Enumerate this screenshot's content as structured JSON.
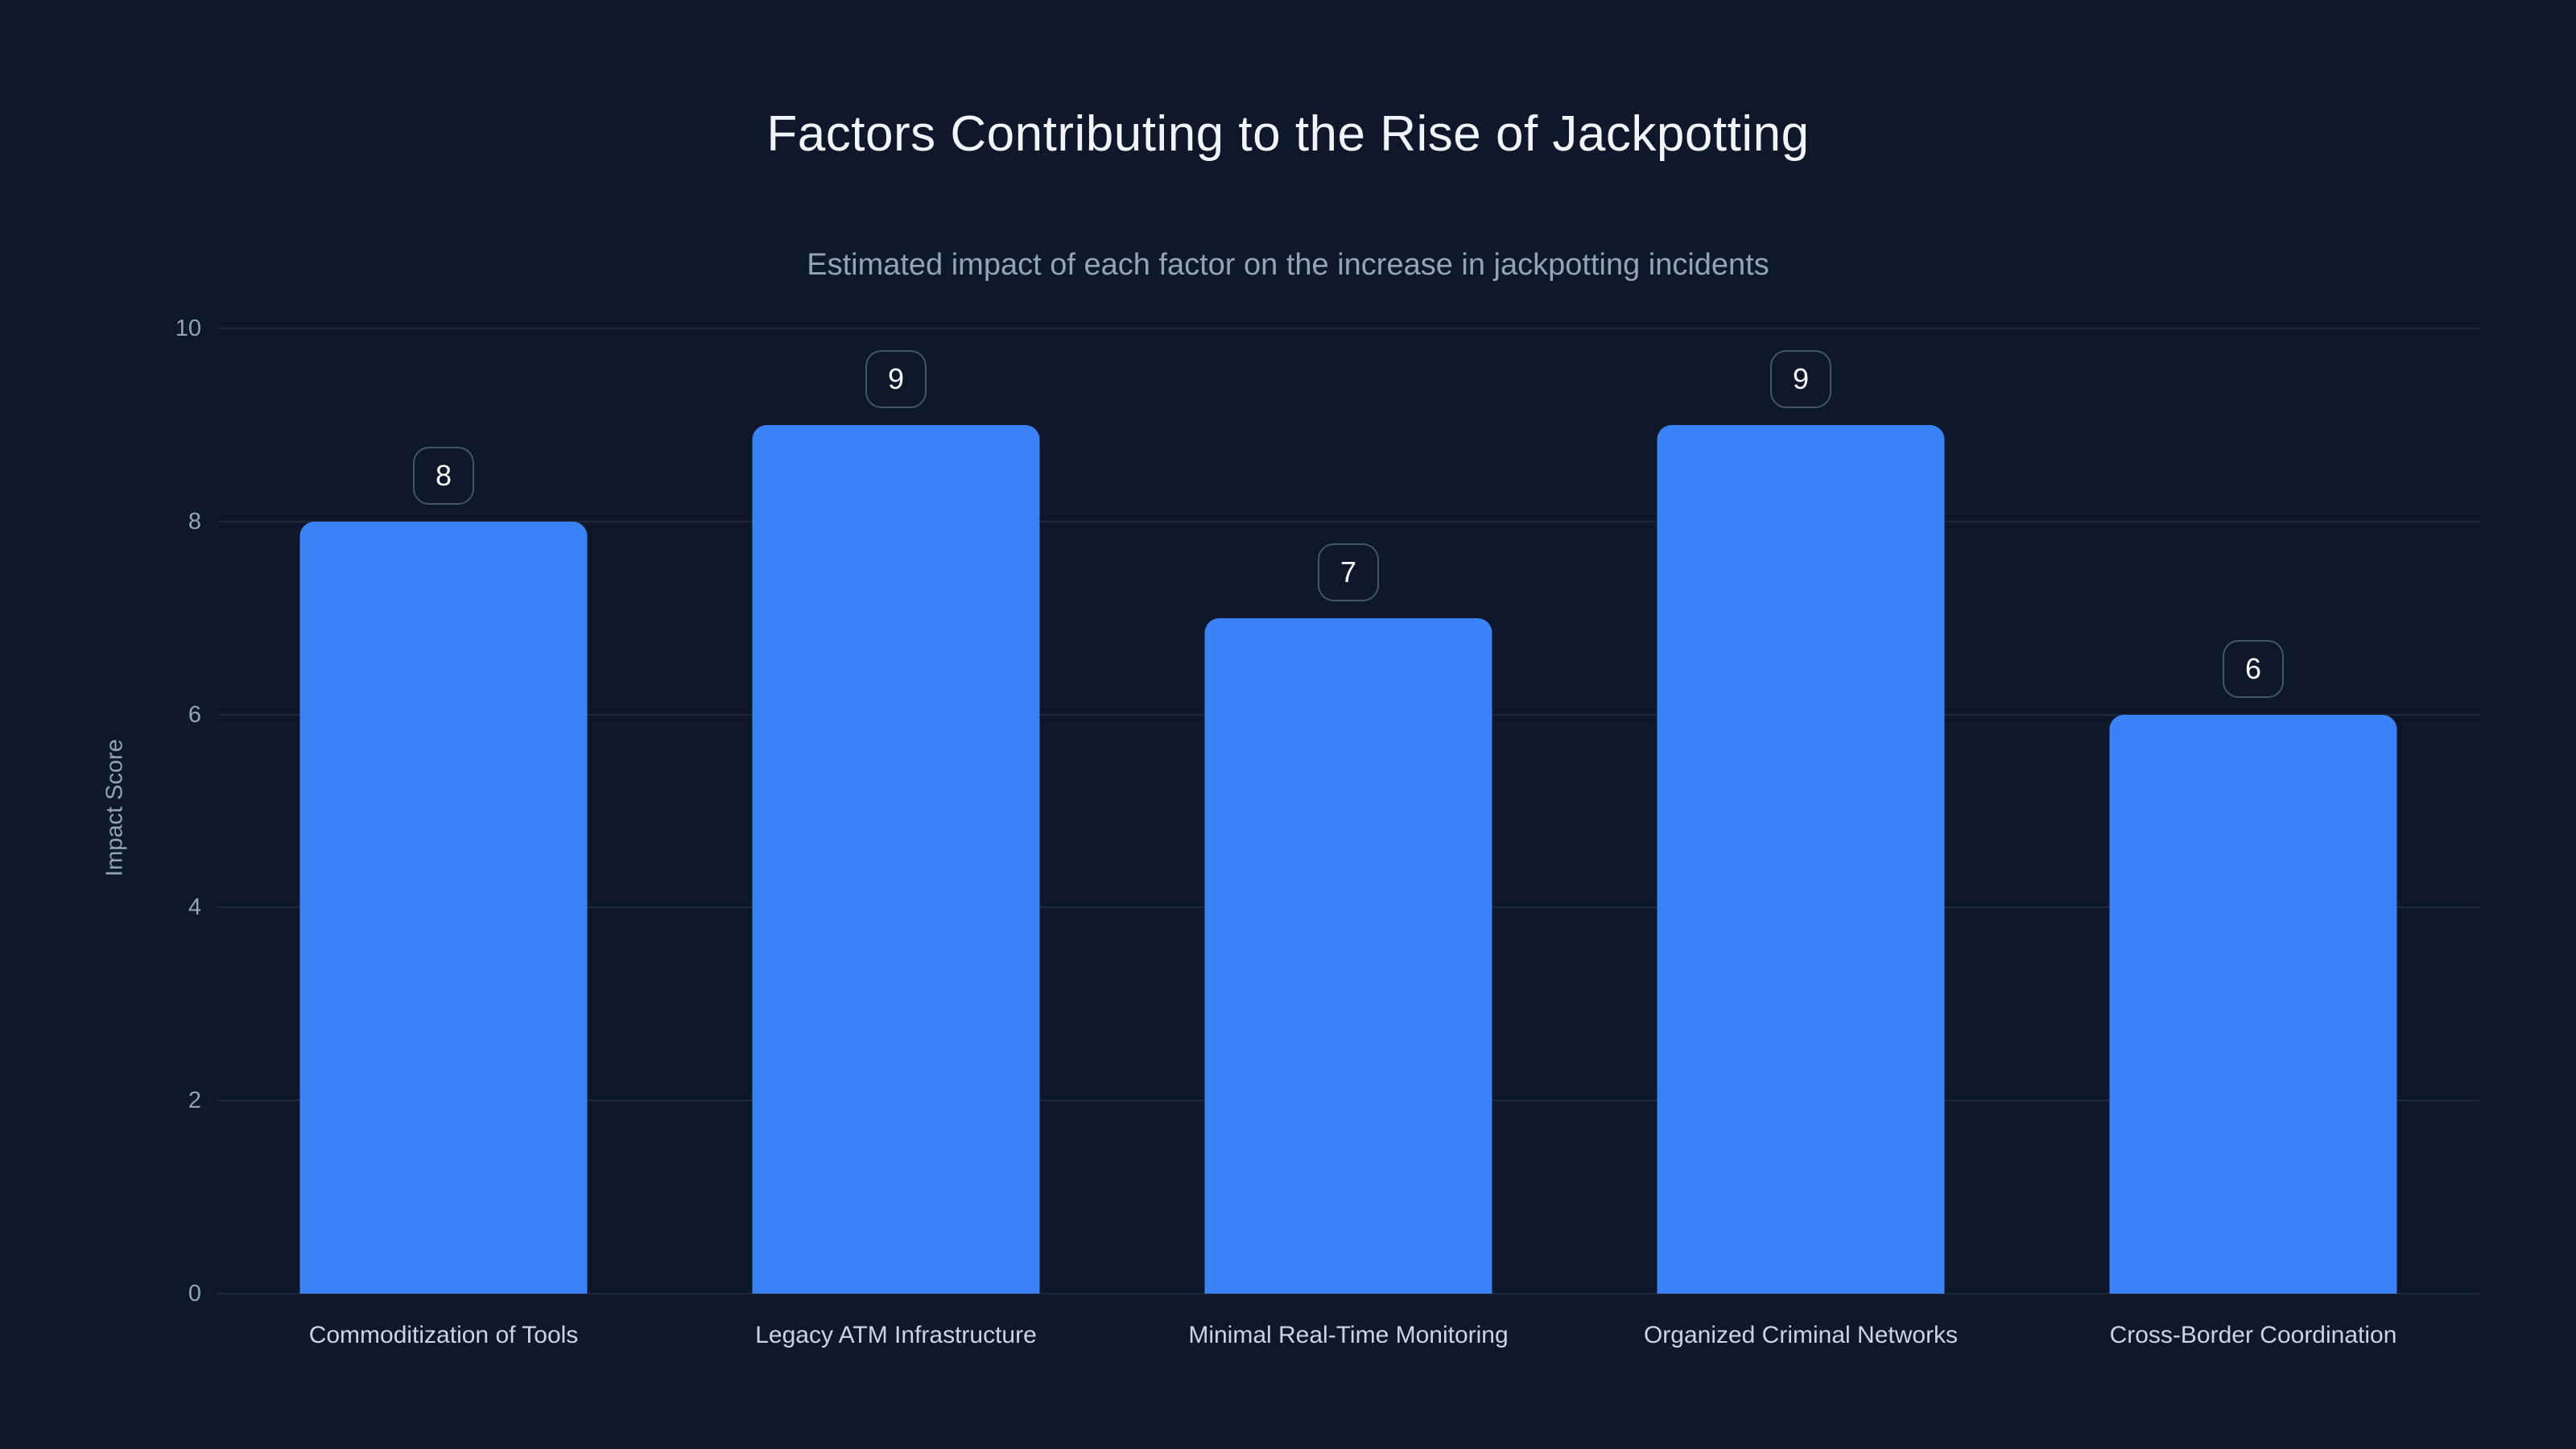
{
  "page": {
    "background": "#0f172a"
  },
  "header": {
    "title": "Factors Contributing to the Rise of Jackpotting",
    "subtitle": "Estimated impact of each factor on the increase in jackpotting incidents"
  },
  "chart_data": {
    "type": "bar",
    "title": "Factors Contributing to the Rise of Jackpotting",
    "subtitle": "Estimated impact of each factor on the increase in jackpotting incidents",
    "categories": [
      "Commoditization of Tools",
      "Legacy ATM Infrastructure",
      "Minimal Real-Time Monitoring",
      "Organized Criminal Networks",
      "Cross-Border Coordination"
    ],
    "values": [
      8,
      9,
      7,
      9,
      6
    ],
    "value_labels": [
      "8",
      "9",
      "7",
      "9",
      "6"
    ],
    "xlabel": "",
    "ylabel": "Impact Score",
    "ylim": [
      0,
      10
    ],
    "yticks": [
      0,
      2,
      4,
      6,
      8,
      10
    ],
    "grid": true,
    "legend": null,
    "bar_color": "#3b82f6",
    "background_color": "#0f172a",
    "gridline_color": "#1e293b",
    "title_color": "#f1f5f9",
    "subtitle_color": "#94a3b8",
    "tick_label_color": "#94a3b8",
    "category_label_color": "#cbd5e1",
    "value_badge_border_color": "#475569",
    "value_badge_text_color": "#f8fafc"
  }
}
